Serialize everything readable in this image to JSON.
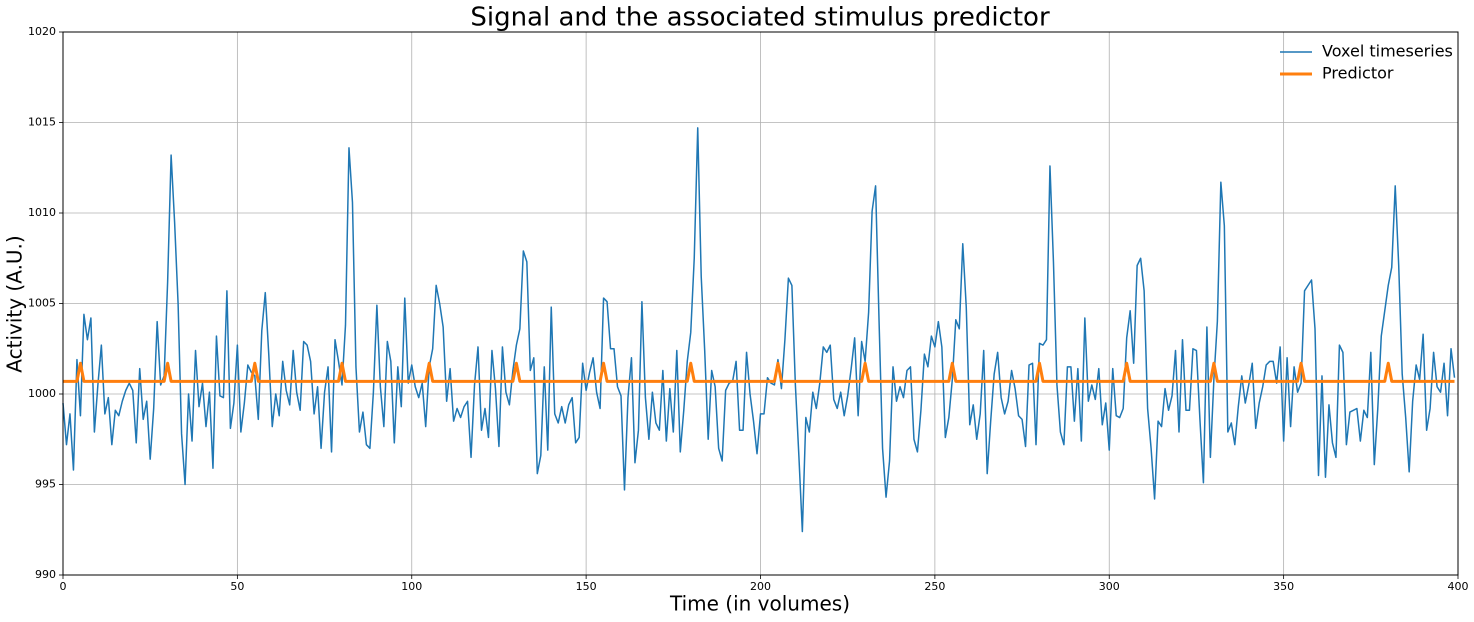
{
  "chart_data": {
    "type": "line",
    "title": "Signal and the associated stimulus predictor",
    "xlabel": "Time (in volumes)",
    "ylabel": "Activity (A.U.)",
    "xlim": [
      0,
      400
    ],
    "xticks": [
      0,
      50,
      100,
      150,
      200,
      250,
      300,
      350,
      400
    ],
    "ylim": [
      990,
      1020
    ],
    "yticks": [
      990,
      995,
      1000,
      1005,
      1010,
      1015,
      1020
    ],
    "grid": true,
    "legend": "upper right",
    "series": [
      {
        "name": "Voxel timeseries",
        "color": "#1f77b4",
        "x": [
          0,
          1,
          2,
          3,
          4,
          5,
          6,
          7,
          8,
          9,
          10,
          11,
          12,
          13,
          14,
          15,
          16,
          17,
          18,
          19,
          20,
          21,
          22,
          23,
          24,
          25,
          26,
          27,
          28,
          29,
          30,
          31,
          32,
          33,
          34,
          35,
          36,
          37,
          38,
          39,
          40,
          41,
          42,
          43,
          44,
          45,
          46,
          47,
          48,
          49,
          50,
          51,
          52,
          53,
          54,
          55,
          56,
          57,
          58,
          59,
          60,
          61,
          62,
          63,
          64,
          65,
          66,
          67,
          68,
          69,
          70,
          71,
          72,
          73,
          74,
          75,
          76,
          77,
          78,
          79,
          80,
          81,
          82,
          83,
          84,
          85,
          86,
          87,
          88,
          89,
          90,
          91,
          92,
          93,
          94,
          95,
          96,
          97,
          98,
          99,
          100,
          101,
          102,
          103,
          104,
          105,
          106,
          107,
          108,
          109,
          110,
          111,
          112,
          113,
          114,
          115,
          116,
          117,
          118,
          119,
          120,
          121,
          122,
          123,
          124,
          125,
          126,
          127,
          128,
          129,
          130,
          131,
          132,
          133,
          134,
          135,
          136,
          137,
          138,
          139,
          140,
          141,
          142,
          143,
          144,
          145,
          146,
          147,
          148,
          149,
          150,
          151,
          152,
          153,
          154,
          155,
          156,
          157,
          158,
          159,
          160,
          161,
          162,
          163,
          164,
          165,
          166,
          167,
          168,
          169,
          170,
          171,
          172,
          173,
          174,
          175,
          176,
          177,
          178,
          179,
          180,
          181,
          182,
          183,
          184,
          185,
          186,
          187,
          188,
          189,
          190,
          191,
          192,
          193,
          194,
          195,
          196,
          197,
          198,
          199,
          200,
          201,
          202,
          203,
          204,
          205,
          206,
          207,
          208,
          209,
          210,
          211,
          212,
          213,
          214,
          215,
          216,
          217,
          218,
          219,
          220,
          221,
          222,
          223,
          224,
          225,
          226,
          227,
          228,
          229,
          230,
          231,
          232,
          233,
          234,
          235,
          236,
          237,
          238,
          239,
          240,
          241,
          242,
          243,
          244,
          245,
          246,
          247,
          248,
          249,
          250,
          251,
          252,
          253,
          254,
          255,
          256,
          257,
          258,
          259,
          260,
          261,
          262,
          263,
          264,
          265,
          266,
          267,
          268,
          269,
          270,
          271,
          272,
          273,
          274,
          275,
          276,
          277,
          278,
          279,
          280,
          281,
          282,
          283,
          284,
          285,
          286,
          287,
          288,
          289,
          290,
          291,
          292,
          293,
          294,
          295,
          296,
          297,
          298,
          299,
          300,
          301,
          302,
          303,
          304,
          305,
          306,
          307,
          308,
          309,
          310,
          311,
          312,
          313,
          314,
          315,
          316,
          317,
          318,
          319,
          320,
          321,
          322,
          323,
          324,
          325,
          326,
          327,
          328,
          329,
          330,
          331,
          332,
          333,
          334,
          335,
          336,
          337,
          338,
          339,
          340,
          341,
          342,
          343,
          344,
          345,
          346,
          347,
          348,
          349,
          350,
          351,
          352,
          353,
          354,
          355,
          356,
          357,
          358,
          359,
          360,
          361,
          362,
          363,
          364,
          365,
          366,
          367,
          368,
          369,
          370,
          371,
          372,
          373,
          374,
          375,
          376,
          377,
          378,
          379,
          380,
          381,
          382,
          383,
          384,
          385,
          386,
          387,
          388,
          389,
          390,
          391,
          392,
          393,
          394,
          395,
          396,
          397,
          398,
          399
        ],
        "values": [
          999.5,
          997.2,
          998.9,
          995.8,
          1001.9,
          998.8,
          1004.4,
          1003,
          1004.2,
          997.9,
          1000.5,
          1002.7,
          998.9,
          999.8,
          997.2,
          999.1,
          998.8,
          999.6,
          1000.2,
          1000.6,
          1000.2,
          997.3,
          1001.4,
          998.6,
          999.6,
          996.4,
          999.2,
          1004,
          1000.5,
          1001,
          1006.2,
          1013.2,
          1009.5,
          1005,
          997.8,
          995,
          1000,
          997.4,
          1002.4,
          999.3,
          1000.6,
          998.2,
          1000.1,
          995.9,
          1003.2,
          999.9,
          999.8,
          1005.7,
          998.1,
          999.5,
          1002.7,
          997.9,
          999.5,
          1001.6,
          1001.2,
          1001,
          998.6,
          1003.5,
          1005.6,
          1002.2,
          998.2,
          1000,
          998.8,
          1001.8,
          1000.2,
          999.4,
          1002.4,
          1000.1,
          999.1,
          1002.9,
          1002.7,
          1001.8,
          998.9,
          1000.4,
          997,
          1000.1,
          1001.5,
          996.8,
          1003,
          1001.8,
          1000.5,
          1003.8,
          1013.6,
          1010.6,
          1001.5,
          997.9,
          999,
          997.2,
          997,
          1000.1,
          1004.9,
          1000.4,
          998.2,
          1002.9,
          1001.8,
          997.3,
          1001.5,
          999.3,
          1005.3,
          1000.6,
          1001.6,
          1000.4,
          999.8,
          1000.6,
          998.2,
          1001.5,
          1002.5,
          1006,
          1005,
          1003.7,
          999.6,
          1001.4,
          998.5,
          999.2,
          998.7,
          999.3,
          999.6,
          996.5,
          1000.5,
          1002.6,
          998,
          999.2,
          997.6,
          1002.4,
          1000.3,
          997.1,
          1002.6,
          1000.1,
          999.4,
          1001.3,
          1002.7,
          1003.6,
          1007.9,
          1007.3,
          1001.3,
          1002,
          995.6,
          996.6,
          1001.5,
          996.9,
          1004.8,
          998.9,
          998.4,
          999.3,
          998.4,
          999.4,
          999.8,
          997.3,
          997.6,
          1001.7,
          1000.2,
          1001.2,
          1002,
          1000.1,
          999.2,
          1005.3,
          1005.1,
          1002.5,
          1002.5,
          1000.4,
          999.9,
          994.7,
          999.8,
          1002,
          996.2,
          998,
          1005.1,
          999.8,
          997.5,
          1000.1,
          998.4,
          998,
          1001.3,
          997.4,
          1000.3,
          997.9,
          1002.4,
          996.8,
          999.1,
          1001.8,
          1003.4,
          1007.5,
          1014.7,
          1006.5,
          1002.4,
          997.5,
          1001.3,
          1000.4,
          997,
          996.3,
          1000.2,
          1000.6,
          1000.7,
          1001.8,
          998,
          998,
          1002.3,
          1000,
          998.5,
          996.7,
          998.9,
          998.9,
          1000.9,
          1000.6,
          1000.5,
          1001.9,
          1000.3,
          1003,
          1006.4,
          1006,
          1000.5,
          996.6,
          992.4,
          998.7,
          997.9,
          1000.1,
          999.2,
          1000.6,
          1002.6,
          1002.3,
          1002.7,
          999.7,
          999.2,
          1000.1,
          998.8,
          999.9,
          1001.4,
          1003.1,
          998.8,
          1002.9,
          1001.8,
          1004.5,
          1010.1,
          1011.5,
          1004,
          997,
          994.3,
          996.3,
          1001.5,
          999.6,
          1000.4,
          999.8,
          1001.3,
          1001.5,
          997.5,
          996.8,
          999.1,
          1002.2,
          1001.5,
          1003.2,
          1002.6,
          1004,
          1002.6,
          997.6,
          998.7,
          1000.8,
          1004.1,
          1003.6,
          1008.3,
          1004.8,
          998.3,
          999.4,
          997.5,
          998.9,
          1002.4,
          995.6,
          998.5,
          1001.1,
          1002.3,
          999.8,
          998.9,
          999.6,
          1001.3,
          1000.3,
          998.8,
          998.6,
          997.1,
          1001.6,
          1001.7,
          997.2,
          1002.8,
          1002.7,
          1003,
          1012.6,
          1007.3,
          1000.5,
          997.9,
          997.2,
          1001.5,
          1001.5,
          998.5,
          1001.4,
          997.4,
          1004.2,
          999.6,
          1000.5,
          999.7,
          1001.4,
          998.3,
          999.5,
          996.9,
          1001.4,
          998.8,
          998.7,
          999.2,
          1003.1,
          1004.6,
          1001.7,
          1007.1,
          1007.5,
          1005.7,
          999.2,
          997,
          994.2,
          998.5,
          998.2,
          1000.3,
          999.1,
          999.9,
          1002.4,
          997.9,
          1003,
          999.1,
          999.1,
          1002.5,
          1002.4,
          998.6,
          995.1,
          1003.7,
          996.5,
          1000.8,
          1004,
          1011.7,
          1009.3,
          997.9,
          998.4,
          997.2,
          999.3,
          1001,
          999.5,
          1000.5,
          1001.7,
          998.1,
          999.5,
          1000.4,
          1001.6,
          1001.8,
          1001.8,
          1000.6,
          1002.6,
          997.4,
          1002,
          998.2,
          1001.5,
          1000.1,
          1000.6,
          1005.7,
          1006,
          1006.3,
          1003.6,
          995.5,
          1001,
          995.4,
          999.4,
          997.3,
          996.5,
          1002.7,
          1002.3,
          997.2,
          999,
          999.1,
          999.2,
          997.4,
          999.1,
          998.7,
          1002.3,
          996.1,
          999.2,
          1003.2,
          1004.6,
          1006,
          1007,
          1011.5,
          1007.1,
          1001.1,
          998.7,
          995.7,
          999.6,
          1001.6,
          1000.8,
          1003.3,
          998,
          999.2,
          1002.3,
          1000.4,
          1000.1,
          1001.7,
          998.8,
          1002.5,
          1000.9
        ]
      },
      {
        "name": "Predictor",
        "color": "#ff7f0e",
        "x": [
          0,
          4,
          5,
          6,
          29,
          30,
          31,
          54,
          55,
          56,
          79,
          80,
          81,
          104,
          105,
          106,
          129,
          130,
          131,
          154,
          155,
          156,
          179,
          180,
          181,
          204,
          205,
          206,
          229,
          230,
          231,
          254,
          255,
          256,
          279,
          280,
          281,
          304,
          305,
          306,
          329,
          330,
          331,
          354,
          355,
          356,
          379,
          380,
          381,
          399
        ],
        "values": [
          1000.7,
          1000.7,
          1001.7,
          1000.7,
          1000.7,
          1001.7,
          1000.7,
          1000.7,
          1001.7,
          1000.7,
          1000.7,
          1001.7,
          1000.7,
          1000.7,
          1001.7,
          1000.7,
          1000.7,
          1001.7,
          1000.7,
          1000.7,
          1001.7,
          1000.7,
          1000.7,
          1001.7,
          1000.7,
          1000.7,
          1001.7,
          1000.7,
          1000.7,
          1001.7,
          1000.7,
          1000.7,
          1001.7,
          1000.7,
          1000.7,
          1001.7,
          1000.7,
          1000.7,
          1001.7,
          1000.7,
          1000.7,
          1001.7,
          1000.7,
          1000.7,
          1001.7,
          1000.7,
          1000.7,
          1001.7,
          1000.7,
          1000.7
        ]
      }
    ]
  }
}
